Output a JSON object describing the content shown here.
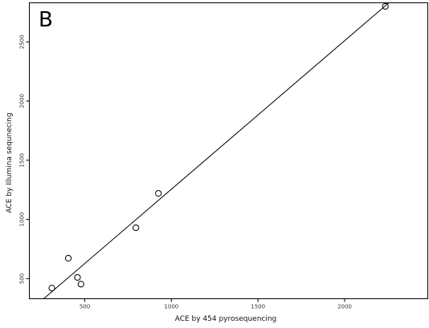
{
  "chart_data": {
    "type": "scatter",
    "panel_label": "B",
    "xlabel": "ACE by 454 pyrosequencing",
    "ylabel": "ACE by Illumina sequnecing",
    "xlim": [
      180,
      2480
    ],
    "ylim": [
      330,
      2830
    ],
    "x_ticks": [
      500,
      1000,
      1500,
      2000
    ],
    "y_ticks": [
      500,
      1000,
      1500,
      2000,
      2500
    ],
    "grid": false,
    "points": [
      {
        "x": 310,
        "y": 420
      },
      {
        "x": 405,
        "y": 672
      },
      {
        "x": 458,
        "y": 510
      },
      {
        "x": 478,
        "y": 453
      },
      {
        "x": 795,
        "y": 930
      },
      {
        "x": 925,
        "y": 1220
      },
      {
        "x": 2235,
        "y": 2800
      }
    ],
    "fit_line": {
      "slope": 1.255,
      "intercept": 0
    }
  }
}
